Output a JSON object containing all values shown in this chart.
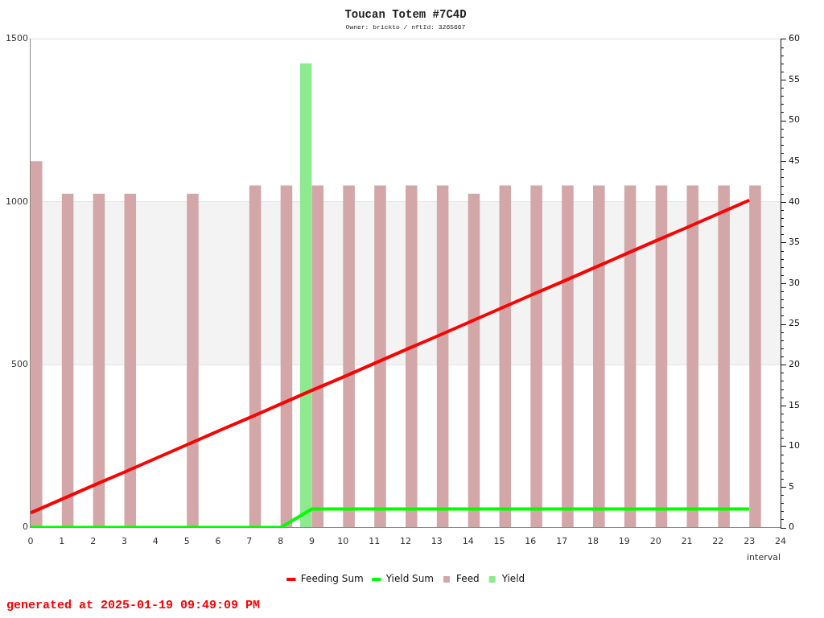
{
  "chart_data": {
    "type": "bar",
    "title": "Toucan Totem #7C4D",
    "subtitle": "Owner: brickto / nftId: 3265667",
    "xlabel": "interval",
    "annotations": [
      "generated at 2025-01-19 09:49:09 PM"
    ],
    "x": [
      0,
      1,
      2,
      3,
      4,
      5,
      6,
      7,
      8,
      9,
      10,
      11,
      12,
      13,
      14,
      15,
      16,
      17,
      18,
      19,
      20,
      21,
      22,
      23
    ],
    "xlim": [
      0,
      24
    ],
    "xticks": [
      0,
      1,
      2,
      3,
      4,
      5,
      6,
      7,
      8,
      9,
      10,
      11,
      12,
      13,
      14,
      15,
      16,
      17,
      18,
      19,
      20,
      21,
      22,
      23,
      24
    ],
    "ylim": [
      0,
      1500
    ],
    "yticks": [
      0,
      500,
      1000,
      1500
    ],
    "y2lim": [
      0,
      60
    ],
    "y2ticks": [
      0,
      {
        "value": 1,
        "label": null
      },
      {
        "value": 2,
        "label": null
      },
      {
        "value": 3,
        "label": null
      },
      {
        "value": 4,
        "label": null
      },
      5,
      {
        "value": 6,
        "label": null
      },
      {
        "value": 7,
        "label": null
      },
      {
        "value": 8,
        "label": null
      },
      {
        "value": 9,
        "label": null
      },
      10,
      {
        "value": 11,
        "label": null
      },
      {
        "value": 12,
        "label": null
      },
      {
        "value": 13,
        "label": null
      },
      {
        "value": 14,
        "label": null
      },
      15,
      {
        "value": 16,
        "label": null
      },
      {
        "value": 17,
        "label": null
      },
      {
        "value": 18,
        "label": null
      },
      {
        "value": 19,
        "label": null
      },
      20,
      {
        "value": 21,
        "label": null
      },
      {
        "value": 22,
        "label": null
      },
      {
        "value": 23,
        "label": null
      },
      {
        "value": 24,
        "label": null
      },
      25,
      {
        "value": 26,
        "label": null
      },
      {
        "value": 27,
        "label": null
      },
      {
        "value": 28,
        "label": null
      },
      {
        "value": 29,
        "label": null
      },
      30,
      {
        "value": 31,
        "label": null
      },
      {
        "value": 32,
        "label": null
      },
      {
        "value": 33,
        "label": null
      },
      {
        "value": 34,
        "label": null
      },
      35,
      {
        "value": 36,
        "label": null
      },
      {
        "value": 37,
        "label": null
      },
      {
        "value": 38,
        "label": null
      },
      {
        "value": 39,
        "label": null
      },
      40,
      {
        "value": 41,
        "label": null
      },
      {
        "value": 42,
        "label": null
      },
      {
        "value": 43,
        "label": null
      },
      {
        "value": 44,
        "label": null
      },
      45,
      {
        "value": 46,
        "label": null
      },
      {
        "value": 47,
        "label": null
      },
      {
        "value": 48,
        "label": null
      },
      {
        "value": 49,
        "label": null
      },
      50,
      {
        "value": 51,
        "label": null
      },
      {
        "value": 52,
        "label": null
      },
      {
        "value": 53,
        "label": null
      },
      {
        "value": 54,
        "label": null
      },
      55,
      {
        "value": 56,
        "label": null
      },
      {
        "value": 57,
        "label": null
      },
      {
        "value": 58,
        "label": null
      },
      {
        "value": 59,
        "label": null
      },
      60
    ],
    "grid": "y",
    "legend": "bottom",
    "marker": "none",
    "bands": [
      {
        "axis": "y",
        "from": 500,
        "to": 1000,
        "color": "#f3f3f3"
      }
    ],
    "series": [
      {
        "name": "Feeding Sum",
        "type": "line",
        "color": "#ff0000",
        "values": [
          45,
          87,
          129,
          170,
          212,
          254,
          296,
          337,
          379,
          421,
          462,
          504,
          546,
          587,
          629,
          671,
          713,
          754,
          796,
          838,
          880,
          921,
          963,
          1005
        ]
      },
      {
        "name": "Yield Sum",
        "type": "line",
        "color": "#00ff00",
        "values": [
          0,
          0,
          0,
          0,
          0,
          0,
          0,
          0,
          0,
          57,
          57,
          57,
          57,
          57,
          57,
          57,
          57,
          57,
          57,
          57,
          57,
          57,
          57,
          57
        ]
      },
      {
        "name": "Feed",
        "axis": "y2",
        "color": "#d3a7a7",
        "values": [
          45,
          41,
          41,
          41,
          null,
          41,
          null,
          42,
          42,
          42,
          42,
          42,
          42,
          42,
          41,
          42,
          42,
          42,
          42,
          42,
          42,
          42,
          42,
          42
        ]
      },
      {
        "name": "Yield",
        "axis": "y2",
        "color": "#8eea8e",
        "values": [
          null,
          null,
          null,
          null,
          null,
          null,
          null,
          null,
          null,
          57,
          null,
          null,
          null,
          null,
          null,
          null,
          null,
          null,
          null,
          null,
          null,
          null,
          null,
          null
        ]
      }
    ]
  }
}
